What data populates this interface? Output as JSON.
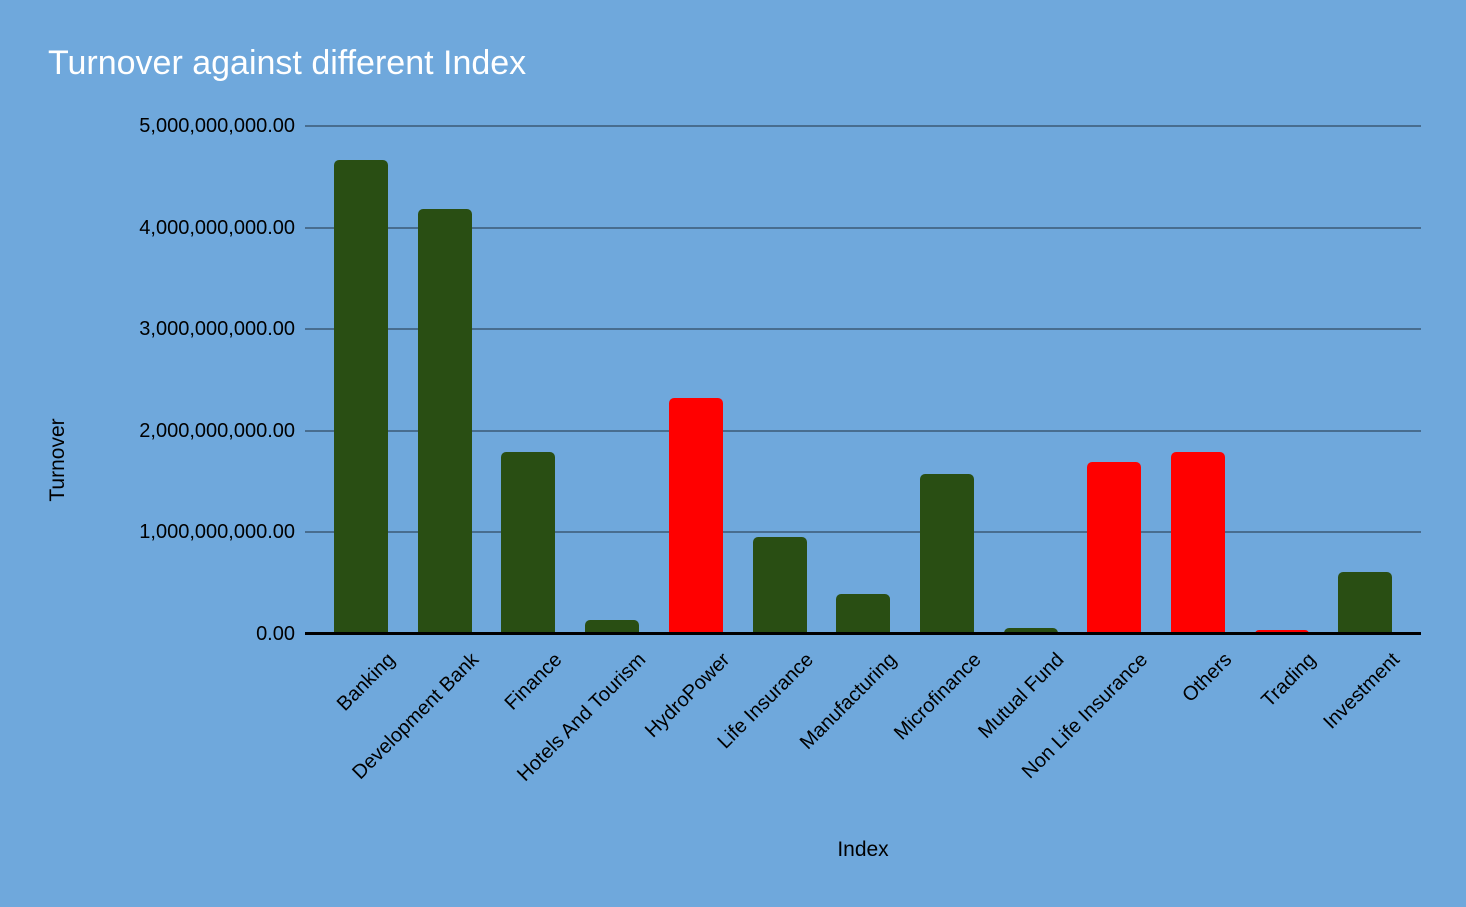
{
  "title": "Turnover against different Index",
  "colors": {
    "background": "#6fa8dc",
    "bar_green": "#294e13",
    "bar_red": "#ff0000",
    "gridline": "rgba(0,0,0,0.35)",
    "axis_line": "#000000",
    "title_text": "#ffffff",
    "tick_text": "#000000"
  },
  "y_axis": {
    "label": "Turnover",
    "max": 5000000000,
    "tick_labels": [
      "5,000,000,000.00",
      "4,000,000,000.00",
      "3,000,000,000.00",
      "2,000,000,000.00",
      "1,000,000,000.00",
      "0.00"
    ]
  },
  "x_axis": {
    "label": "Index"
  },
  "chart_data": {
    "type": "bar",
    "title": "Turnover against different Index",
    "xlabel": "Index",
    "ylabel": "Turnover",
    "ylim": [
      0,
      5000000000
    ],
    "grid": true,
    "legend_position": "none",
    "categories": [
      "Banking",
      "Development Bank",
      "Finance",
      "Hotels And Tourism",
      "HydroPower",
      "Life Insurance",
      "Manufacturing",
      "Microfinance",
      "Mutual Fund",
      "Non Life Insurance",
      "Others",
      "Trading",
      "Investment"
    ],
    "values": [
      4670000000,
      4180000000,
      1790000000,
      140000000,
      2320000000,
      950000000,
      390000000,
      1570000000,
      60000000,
      1690000000,
      1790000000,
      40000000,
      610000000
    ],
    "bar_colors": [
      "#294e13",
      "#294e13",
      "#294e13",
      "#294e13",
      "#ff0000",
      "#294e13",
      "#294e13",
      "#294e13",
      "#294e13",
      "#ff0000",
      "#ff0000",
      "#ff0000",
      "#294e13"
    ],
    "y_tick_labels": [
      "5,000,000,000.00",
      "4,000,000,000.00",
      "3,000,000,000.00",
      "2,000,000,000.00",
      "1,000,000,000.00",
      "0.00"
    ]
  }
}
